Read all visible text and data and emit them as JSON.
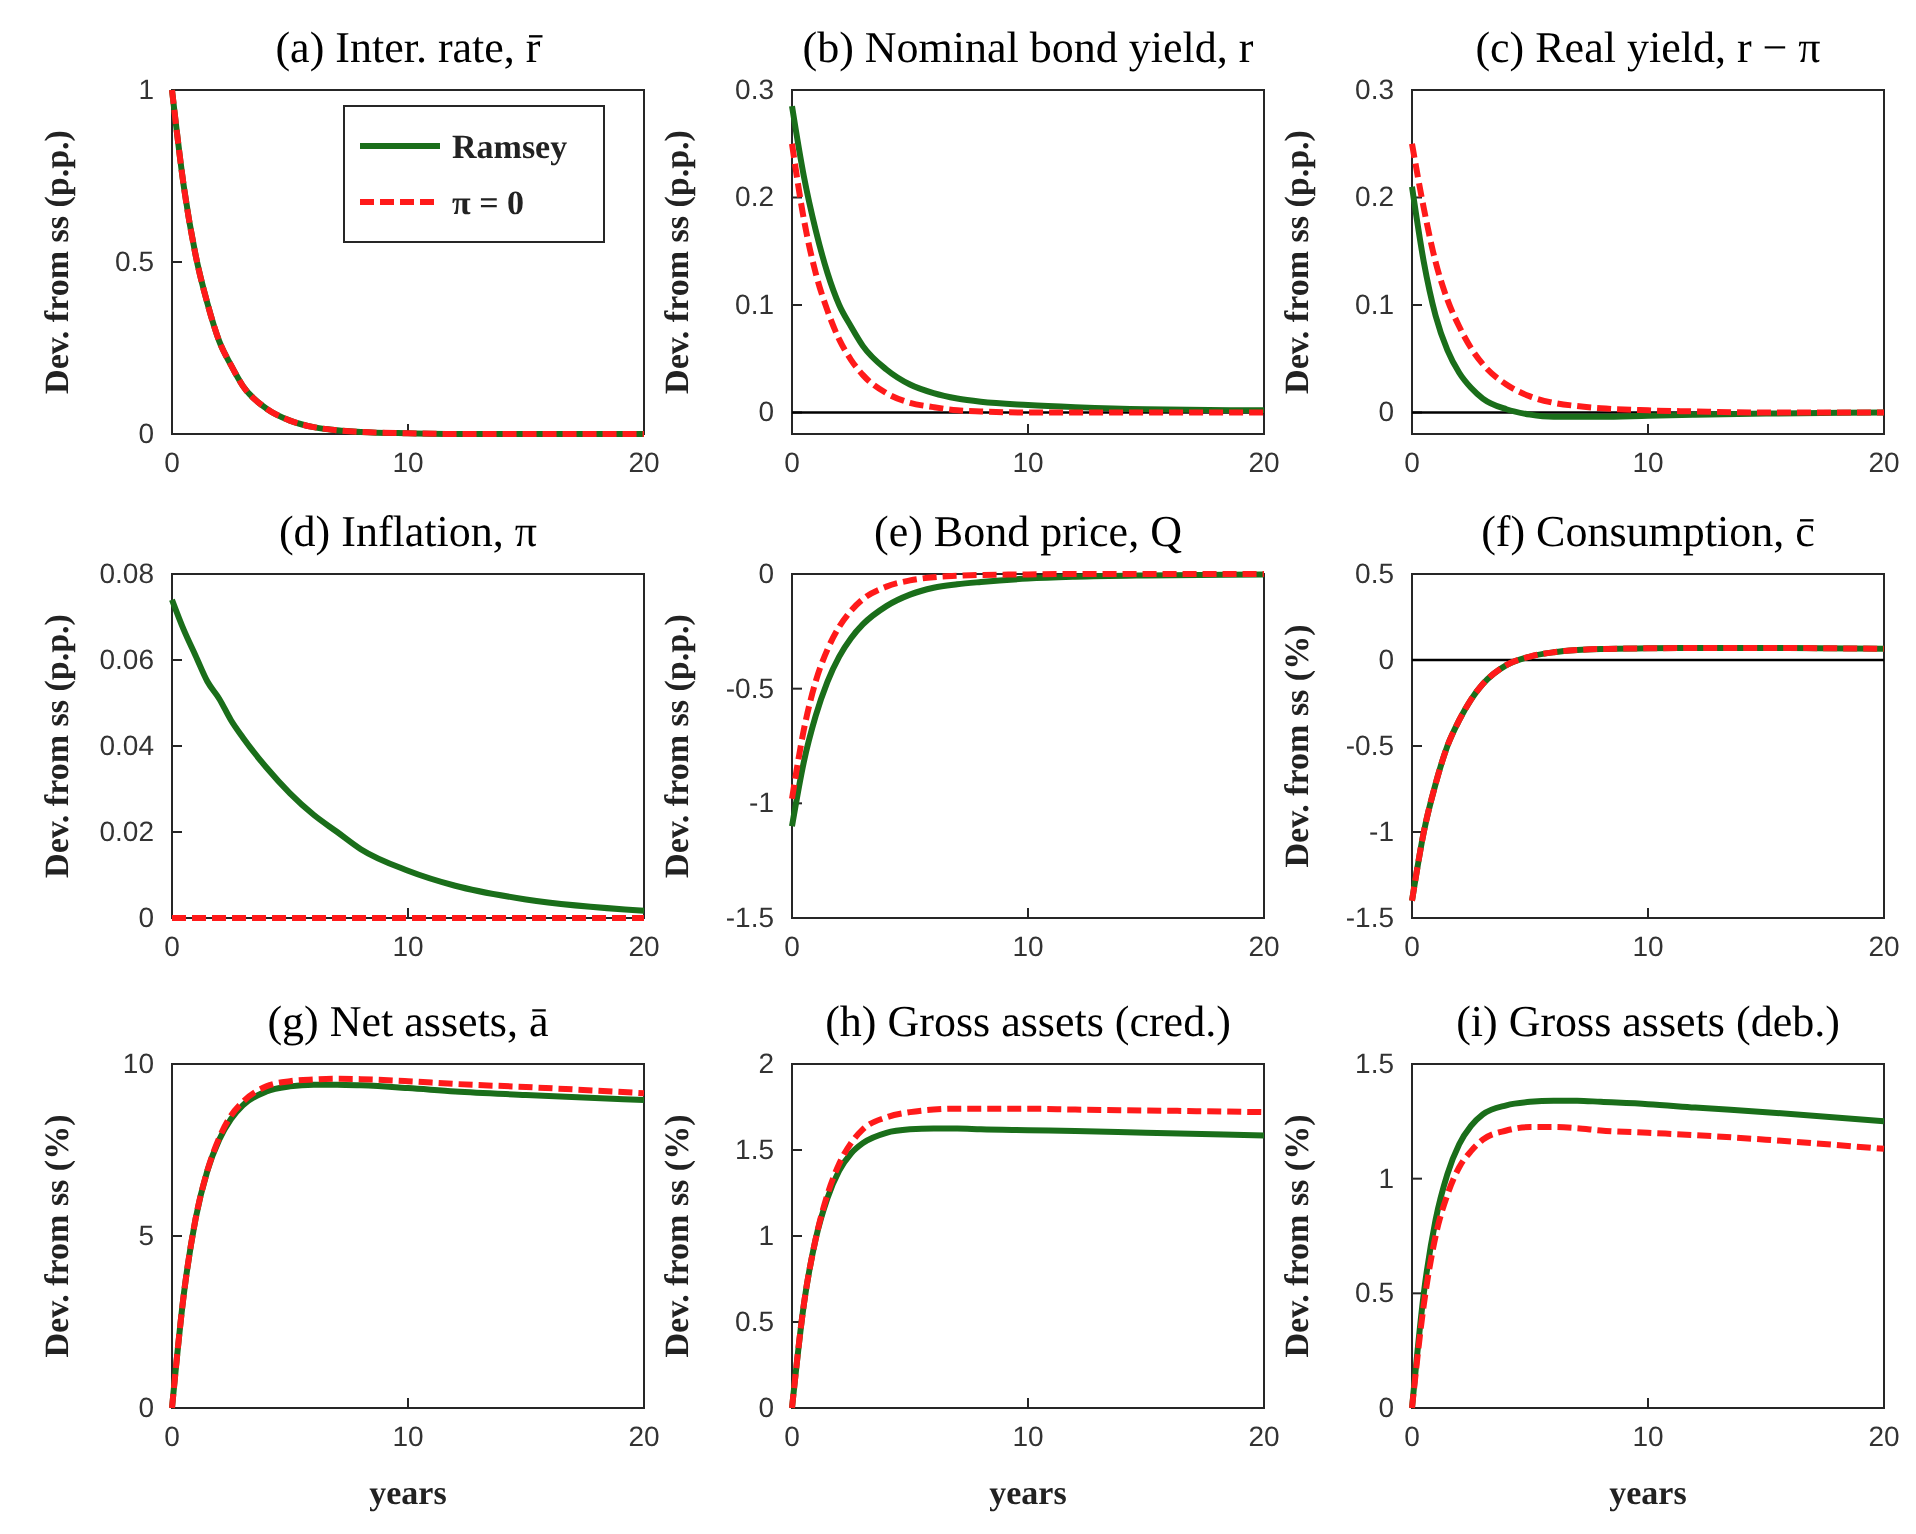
{
  "chart_data": [
    {
      "type": "line",
      "title": "(a) Inter. rate, r̄",
      "ylabel": "Dev. from ss (p.p.)",
      "x": [
        0,
        0.5,
        1,
        1.5,
        2,
        2.5,
        3,
        4,
        5,
        6,
        7,
        8,
        10,
        12,
        15,
        20
      ],
      "xlim": [
        0,
        20
      ],
      "xticks": [
        0,
        10,
        20
      ],
      "ylim": [
        0,
        1
      ],
      "yticks": [
        0,
        0.5,
        1
      ],
      "legend": "top right",
      "series": [
        {
          "name": "Ramsey",
          "color": "#1a6e1a",
          "line_style": "solid",
          "values": [
            1,
            0.72,
            0.52,
            0.38,
            0.27,
            0.2,
            0.14,
            0.074,
            0.039,
            0.02,
            0.011,
            0.006,
            0.002,
            0,
            0,
            0
          ]
        },
        {
          "name": "π = 0",
          "color": "#ff1a1a",
          "line_style": "dashed",
          "values": [
            1,
            0.72,
            0.52,
            0.38,
            0.27,
            0.2,
            0.14,
            0.074,
            0.039,
            0.02,
            0.011,
            0.006,
            0.002,
            0,
            0,
            0
          ]
        }
      ]
    },
    {
      "type": "line",
      "title": "(b) Nominal bond yield, r",
      "ylabel": "Dev. from ss (p.p.)",
      "x": [
        0,
        0.5,
        1,
        1.5,
        2,
        2.5,
        3,
        4,
        5,
        6,
        7,
        8,
        10,
        12,
        15,
        20
      ],
      "xlim": [
        0,
        20
      ],
      "xticks": [
        0,
        10,
        20
      ],
      "ylim": [
        -0.02,
        0.3
      ],
      "yticks": [
        0,
        0.1,
        0.2,
        0.3
      ],
      "ref_lines": [
        {
          "axis": "y",
          "value": 0,
          "color": "#000000"
        }
      ],
      "series": [
        {
          "color": "#1a6e1a",
          "line_style": "solid",
          "values": [
            0.285,
            0.22,
            0.17,
            0.13,
            0.1,
            0.08,
            0.062,
            0.04,
            0.026,
            0.018,
            0.013,
            0.01,
            0.007,
            0.005,
            0.003,
            0.002
          ]
        },
        {
          "color": "#ff1a1a",
          "line_style": "dashed",
          "values": [
            0.25,
            0.18,
            0.13,
            0.095,
            0.068,
            0.049,
            0.035,
            0.018,
            0.009,
            0.005,
            0.002,
            0.001,
            0,
            0,
            0,
            0
          ]
        }
      ]
    },
    {
      "type": "line",
      "title": "(c) Real yield, r − π",
      "ylabel": "Dev. from ss (p.p.)",
      "x": [
        0,
        0.5,
        1,
        1.5,
        2,
        2.5,
        3,
        4,
        5,
        6,
        7,
        8,
        10,
        12,
        15,
        20
      ],
      "xlim": [
        0,
        20
      ],
      "xticks": [
        0,
        10,
        20
      ],
      "ylim": [
        -0.02,
        0.3
      ],
      "yticks": [
        0,
        0.1,
        0.2,
        0.3
      ],
      "ref_lines": [
        {
          "axis": "y",
          "value": 0,
          "color": "#000000"
        }
      ],
      "series": [
        {
          "color": "#1a6e1a",
          "line_style": "solid",
          "values": [
            0.21,
            0.14,
            0.09,
            0.058,
            0.037,
            0.023,
            0.013,
            0.003,
            -0.002,
            -0.004,
            -0.004,
            -0.004,
            -0.003,
            -0.002,
            -0.001,
            0
          ]
        },
        {
          "color": "#ff1a1a",
          "line_style": "dashed",
          "values": [
            0.25,
            0.19,
            0.14,
            0.105,
            0.08,
            0.06,
            0.045,
            0.026,
            0.015,
            0.009,
            0.006,
            0.004,
            0.002,
            0.001,
            0,
            0
          ]
        }
      ]
    },
    {
      "type": "line",
      "title": "(d) Inflation, π",
      "ylabel": "Dev. from ss (p.p.)",
      "x": [
        0,
        0.5,
        1,
        1.5,
        2,
        2.5,
        3,
        4,
        5,
        6,
        7,
        8,
        10,
        12,
        15,
        20
      ],
      "xlim": [
        0,
        20
      ],
      "xticks": [
        0,
        10,
        20
      ],
      "ylim": [
        0,
        0.08
      ],
      "yticks": [
        0,
        0.02,
        0.04,
        0.06,
        0.08
      ],
      "series": [
        {
          "color": "#1a6e1a",
          "line_style": "solid",
          "values": [
            0.074,
            0.067,
            0.061,
            0.055,
            0.051,
            0.046,
            0.042,
            0.035,
            0.029,
            0.024,
            0.02,
            0.016,
            0.011,
            0.0075,
            0.0043,
            0.0017
          ]
        },
        {
          "color": "#ff1a1a",
          "line_style": "dashed",
          "values": [
            0,
            0,
            0,
            0,
            0,
            0,
            0,
            0,
            0,
            0,
            0,
            0,
            0,
            0,
            0,
            0
          ]
        }
      ]
    },
    {
      "type": "line",
      "title": "(e) Bond price, Q",
      "ylabel": "Dev. from ss (p.p.)",
      "x": [
        0,
        0.5,
        1,
        1.5,
        2,
        2.5,
        3,
        4,
        5,
        6,
        7,
        8,
        10,
        12,
        15,
        20
      ],
      "xlim": [
        0,
        20
      ],
      "xticks": [
        0,
        10,
        20
      ],
      "ylim": [
        -1.5,
        0
      ],
      "yticks": [
        -1.5,
        -1,
        -0.5,
        0
      ],
      "series": [
        {
          "color": "#1a6e1a",
          "line_style": "solid",
          "values": [
            -1.1,
            -0.82,
            -0.62,
            -0.47,
            -0.36,
            -0.28,
            -0.22,
            -0.14,
            -0.09,
            -0.06,
            -0.045,
            -0.035,
            -0.02,
            -0.012,
            -0.006,
            -0.002
          ]
        },
        {
          "color": "#ff1a1a",
          "line_style": "dashed",
          "values": [
            -0.98,
            -0.68,
            -0.47,
            -0.33,
            -0.23,
            -0.16,
            -0.11,
            -0.055,
            -0.028,
            -0.014,
            -0.008,
            -0.004,
            -0.002,
            0,
            0,
            0
          ]
        }
      ]
    },
    {
      "type": "line",
      "title": "(f) Consumption, c̄",
      "ylabel": "Dev. from ss (%)",
      "x": [
        0,
        0.5,
        1,
        1.5,
        2,
        2.5,
        3,
        4,
        5,
        6,
        7,
        8,
        10,
        12,
        15,
        20
      ],
      "xlim": [
        0,
        20
      ],
      "xticks": [
        0,
        10,
        20
      ],
      "ylim": [
        -1.5,
        0.5
      ],
      "yticks": [
        -1.5,
        -1,
        -0.5,
        0,
        0.5
      ],
      "ref_lines": [
        {
          "axis": "y",
          "value": 0,
          "color": "#000000"
        }
      ],
      "series": [
        {
          "color": "#1a6e1a",
          "line_style": "solid",
          "values": [
            -1.4,
            -1.0,
            -0.72,
            -0.5,
            -0.35,
            -0.23,
            -0.14,
            -0.03,
            0.02,
            0.045,
            0.058,
            0.064,
            0.068,
            0.07,
            0.07,
            0.065
          ]
        },
        {
          "color": "#ff1a1a",
          "line_style": "dashed",
          "values": [
            -1.4,
            -1.0,
            -0.72,
            -0.5,
            -0.35,
            -0.23,
            -0.14,
            -0.03,
            0.02,
            0.045,
            0.058,
            0.064,
            0.068,
            0.07,
            0.07,
            0.065
          ]
        }
      ]
    },
    {
      "type": "line",
      "title": "(g) Net assets, ā",
      "ylabel": "Dev. from ss (%)",
      "xlabel": "years",
      "x": [
        0,
        0.5,
        1,
        1.5,
        2,
        2.5,
        3,
        4,
        5,
        6,
        7,
        8,
        10,
        12,
        15,
        20
      ],
      "xlim": [
        0,
        20
      ],
      "xticks": [
        0,
        10,
        20
      ],
      "ylim": [
        0,
        10
      ],
      "yticks": [
        0,
        5,
        10
      ],
      "series": [
        {
          "color": "#1a6e1a",
          "line_style": "solid",
          "values": [
            0,
            3.3,
            5.5,
            6.9,
            7.8,
            8.4,
            8.8,
            9.2,
            9.35,
            9.4,
            9.4,
            9.38,
            9.3,
            9.2,
            9.1,
            8.95
          ]
        },
        {
          "color": "#ff1a1a",
          "line_style": "dashed",
          "values": [
            0,
            3.3,
            5.5,
            6.9,
            7.85,
            8.5,
            8.9,
            9.35,
            9.5,
            9.55,
            9.57,
            9.56,
            9.5,
            9.42,
            9.33,
            9.15
          ]
        }
      ]
    },
    {
      "type": "line",
      "title": "(h) Gross assets (cred.)",
      "ylabel": "Dev. from ss (%)",
      "xlabel": "years",
      "x": [
        0,
        0.5,
        1,
        1.5,
        2,
        2.5,
        3,
        4,
        5,
        6,
        7,
        8,
        10,
        12,
        15,
        20
      ],
      "xlim": [
        0,
        20
      ],
      "xticks": [
        0,
        10,
        20
      ],
      "ylim": [
        0,
        2
      ],
      "yticks": [
        0,
        0.5,
        1,
        1.5,
        2
      ],
      "series": [
        {
          "color": "#1a6e1a",
          "line_style": "solid",
          "values": [
            0,
            0.6,
            0.98,
            1.22,
            1.38,
            1.48,
            1.54,
            1.6,
            1.62,
            1.625,
            1.625,
            1.62,
            1.615,
            1.61,
            1.6,
            1.585
          ]
        },
        {
          "color": "#ff1a1a",
          "line_style": "dashed",
          "values": [
            0,
            0.6,
            0.98,
            1.24,
            1.42,
            1.54,
            1.62,
            1.69,
            1.72,
            1.735,
            1.74,
            1.74,
            1.74,
            1.735,
            1.73,
            1.72
          ]
        }
      ]
    },
    {
      "type": "line",
      "title": "(i) Gross assets (deb.)",
      "ylabel": "Dev. from ss (%)",
      "xlabel": "years",
      "x": [
        0,
        0.5,
        1,
        1.5,
        2,
        2.5,
        3,
        4,
        5,
        6,
        7,
        8,
        10,
        12,
        15,
        20
      ],
      "xlim": [
        0,
        20
      ],
      "xticks": [
        0,
        10,
        20
      ],
      "ylim": [
        0,
        1.5
      ],
      "yticks": [
        0,
        0.5,
        1,
        1.5
      ],
      "series": [
        {
          "color": "#1a6e1a",
          "line_style": "solid",
          "values": [
            0,
            0.5,
            0.82,
            1.02,
            1.15,
            1.23,
            1.28,
            1.32,
            1.335,
            1.34,
            1.34,
            1.335,
            1.325,
            1.31,
            1.29,
            1.25
          ]
        },
        {
          "color": "#ff1a1a",
          "line_style": "dashed",
          "values": [
            0,
            0.45,
            0.75,
            0.93,
            1.05,
            1.12,
            1.17,
            1.21,
            1.225,
            1.225,
            1.22,
            1.21,
            1.2,
            1.19,
            1.17,
            1.13
          ]
        }
      ]
    }
  ]
}
